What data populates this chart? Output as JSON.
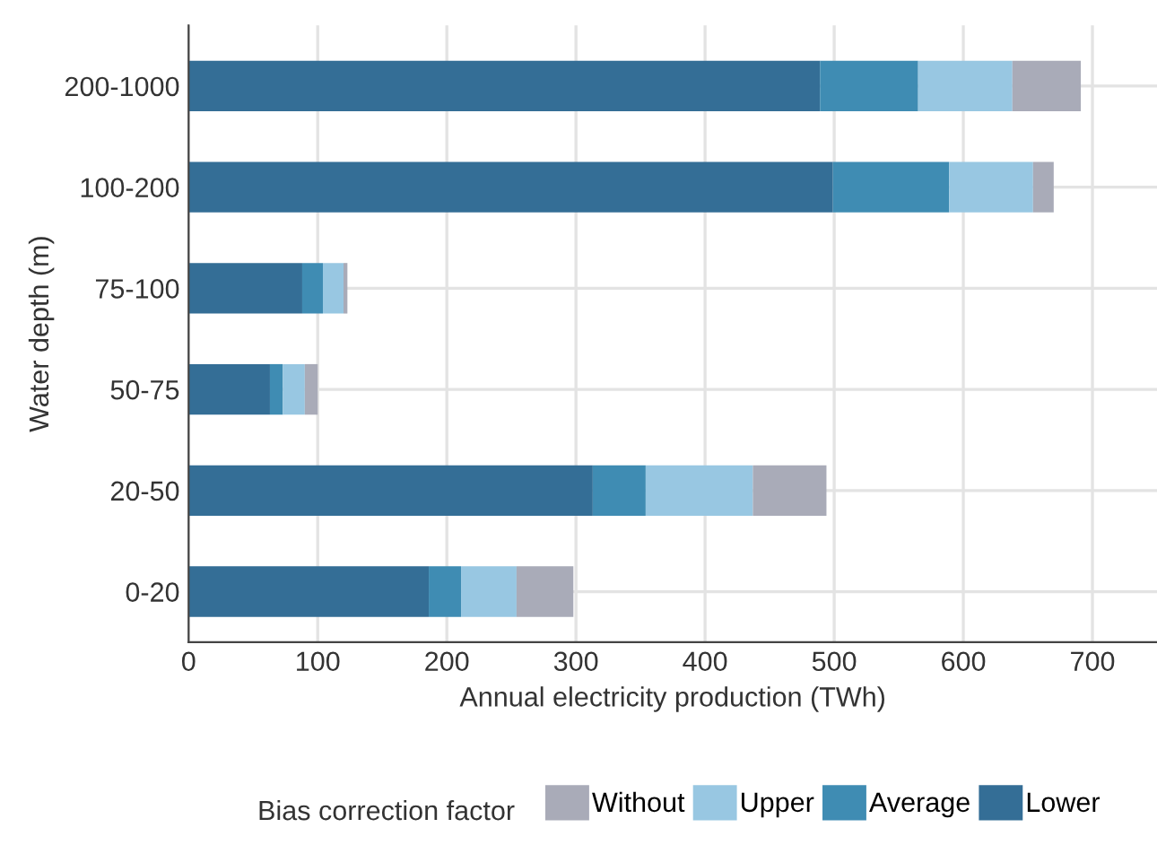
{
  "chart_data": {
    "type": "bar",
    "orientation": "horizontal",
    "stacked": true,
    "categories": [
      "200-1000",
      "100-200",
      "75-100",
      "50-75",
      "20-50",
      "0-20"
    ],
    "series": [
      {
        "name": "Lower",
        "color": "#346e96",
        "values": [
          489,
          499,
          88,
          63,
          313,
          186
        ]
      },
      {
        "name": "Average",
        "color": "#3f8cb3",
        "values": [
          76,
          90,
          16,
          10,
          41,
          25
        ]
      },
      {
        "name": "Upper",
        "color": "#98c7e2",
        "values": [
          73,
          65,
          16,
          17,
          83,
          43
        ]
      },
      {
        "name": "Without",
        "color": "#a9abb8",
        "values": [
          53,
          16,
          3,
          10,
          57,
          44
        ]
      }
    ],
    "xlabel": "Annual electricity production (TWh)",
    "ylabel": "Water depth (m)",
    "legend_title": "Bias correction factor",
    "legend": "bottom",
    "xlim": [
      0,
      750
    ],
    "xticks": [
      0,
      100,
      200,
      300,
      400,
      500,
      600,
      700
    ],
    "grid": true
  }
}
